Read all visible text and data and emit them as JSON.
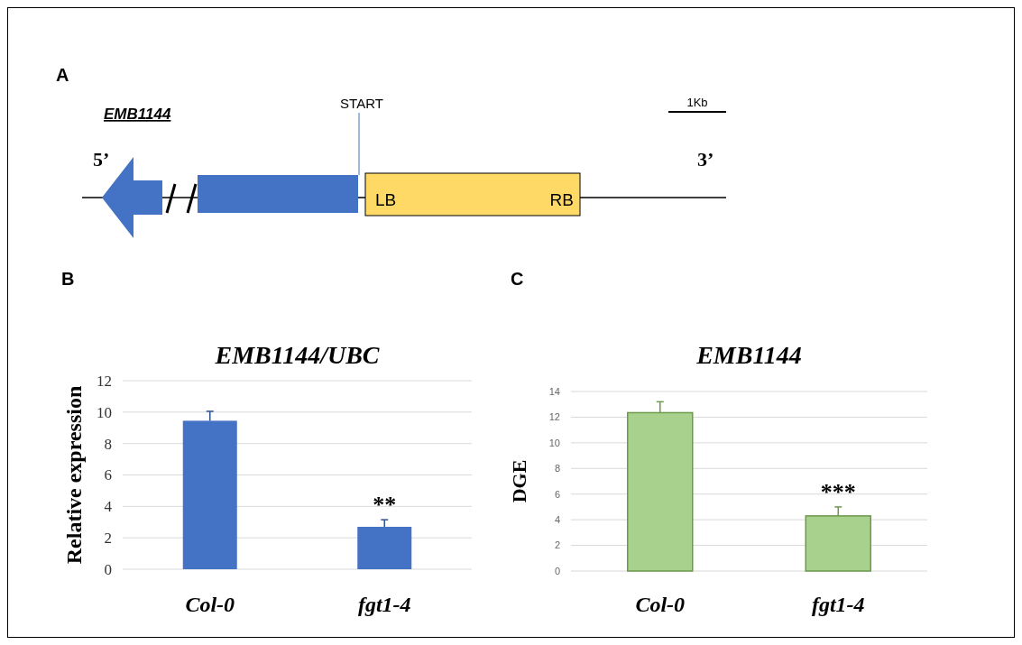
{
  "chart_data": [
    {
      "type": "other",
      "annotations": [
        "A",
        "EMB1144",
        "START",
        "1Kb",
        "5’",
        "3’",
        "LB",
        "RB"
      ]
    },
    {
      "type": "bar",
      "title": "EMB1144/UBC",
      "ylabel": "Relative expression",
      "categories": [
        "Col-0",
        "fgt1-4"
      ],
      "values": [
        9.45,
        2.7
      ],
      "errors": [
        0.6,
        0.45
      ],
      "color": "#4472c4",
      "ylim": [
        0,
        12
      ],
      "yticks": [
        0,
        2,
        4,
        6,
        8,
        10,
        12
      ],
      "grid": "y",
      "annotations": [
        "B",
        "**"
      ]
    },
    {
      "type": "bar",
      "title": "EMB1144",
      "ylabel": "DGE",
      "categories": [
        "Col-0",
        "fgt1-4"
      ],
      "values": [
        12.35,
        4.3
      ],
      "errors": [
        0.85,
        0.7
      ],
      "color": "#a9d18e",
      "ylim": [
        0,
        14
      ],
      "yticks": [
        0,
        2,
        4,
        6,
        8,
        10,
        12,
        14
      ],
      "grid": "y",
      "annotations": [
        "C",
        "***"
      ]
    }
  ]
}
